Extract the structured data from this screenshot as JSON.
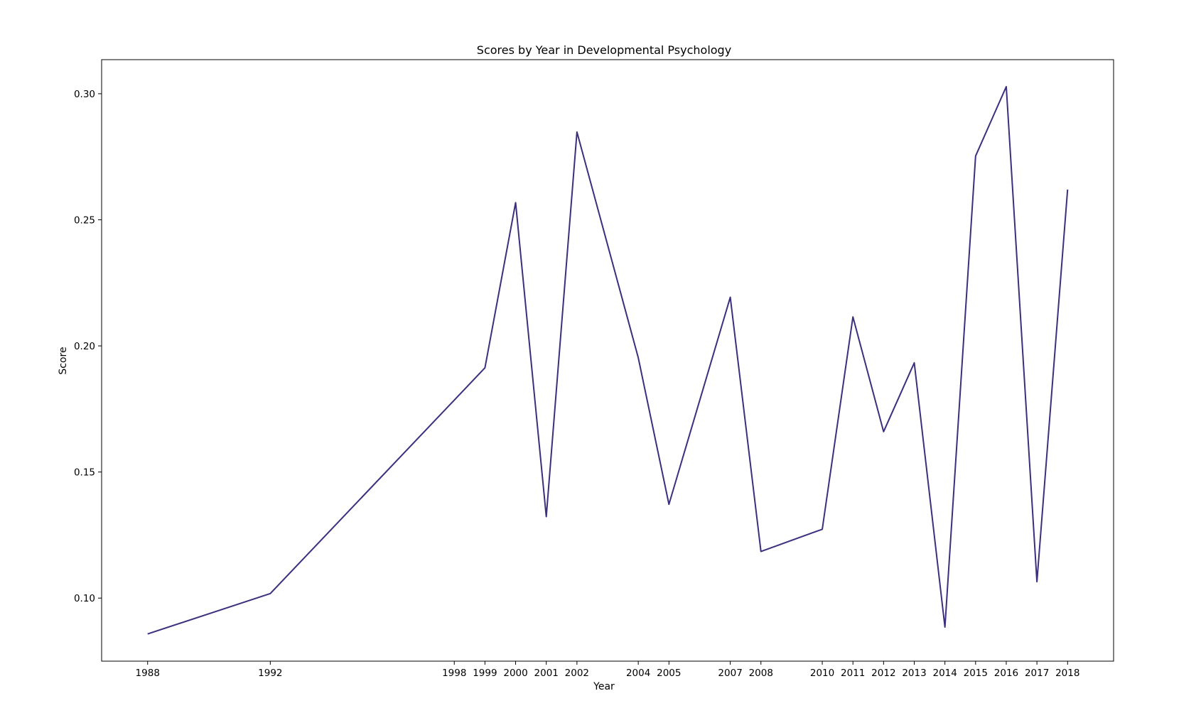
{
  "chart_data": {
    "type": "line",
    "title": "Scores by Year in Developmental Psychology",
    "xlabel": "Year",
    "ylabel": "Score",
    "x": [
      1988,
      1992,
      1998,
      1999,
      2000,
      2001,
      2002,
      2004,
      2005,
      2007,
      2008,
      2010,
      2011,
      2012,
      2013,
      2014,
      2015,
      2016,
      2017,
      2018
    ],
    "series": [
      {
        "values": [
          0.0858,
          0.1018,
          0.1785,
          0.1913,
          0.2568,
          0.1323,
          0.2848,
          0.1953,
          0.1372,
          0.2193,
          0.1185,
          0.1273,
          0.2115,
          0.166,
          0.1933,
          0.0885,
          0.2753,
          0.3028,
          0.1065,
          0.262
        ]
      }
    ],
    "xticks": [
      "1988",
      "1992",
      "1998",
      "1999",
      "2000",
      "2001",
      "2002",
      "2004",
      "2005",
      "2007",
      "2008",
      "2010",
      "2011",
      "2012",
      "2013",
      "2014",
      "2015",
      "2016",
      "2017",
      "2018"
    ],
    "xlim": [
      1986.5,
      2019.5
    ],
    "yticks": [
      "0.10",
      "0.15",
      "0.20",
      "0.25",
      "0.30"
    ],
    "ytick_values": [
      0.1,
      0.15,
      0.2,
      0.25,
      0.3
    ],
    "ylim": [
      0.075,
      0.3135
    ],
    "grid": false,
    "colors": {
      "line": "#3b2f7e",
      "frame": "#000000"
    }
  }
}
